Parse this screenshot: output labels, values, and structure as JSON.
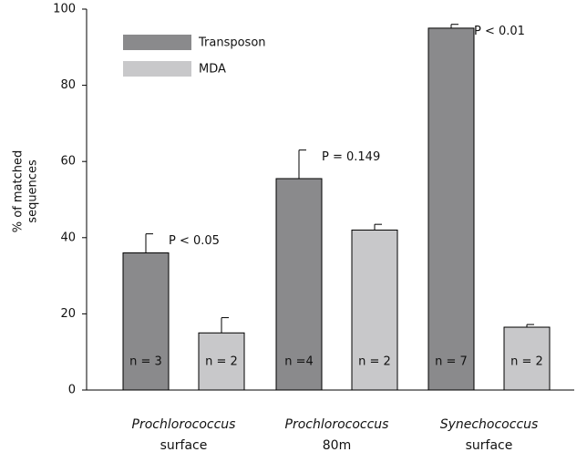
{
  "chart_data": {
    "type": "bar",
    "categories": [
      [
        "Prochlorococcus",
        "surface"
      ],
      [
        "Prochlorococcus",
        "80m"
      ],
      [
        "Synechococcus",
        "surface"
      ]
    ],
    "series": [
      {
        "name": "Transposon",
        "color": "#8a8a8c",
        "values": [
          36,
          55.5,
          95
        ],
        "errors": [
          5,
          7.5,
          1
        ],
        "n_labels": [
          "n = 3",
          "n =4",
          "n = 7"
        ]
      },
      {
        "name": "MDA",
        "color": "#c8c8ca",
        "values": [
          15,
          42,
          16.5
        ],
        "errors": [
          4,
          1.5,
          0.7
        ],
        "n_labels": [
          "n = 2",
          "n = 2",
          "n = 2"
        ]
      }
    ],
    "annotations": [
      "P < 0.05",
      "P = 0.149",
      "P < 0.01"
    ],
    "ylabel": [
      "% of matched",
      "sequences"
    ],
    "ylim": [
      0,
      100
    ],
    "yticks": [
      0,
      20,
      40,
      60,
      80,
      100
    ]
  }
}
